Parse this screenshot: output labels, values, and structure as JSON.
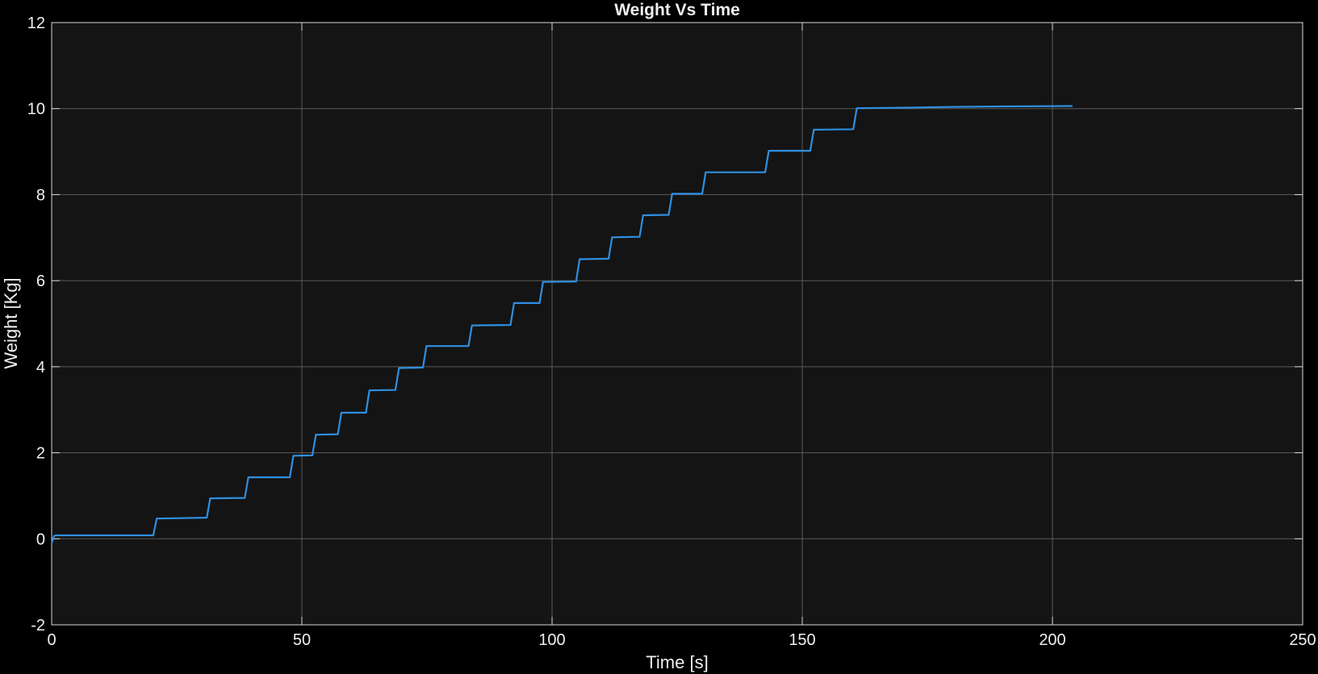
{
  "chart_data": {
    "type": "line",
    "title": "Weight Vs Time",
    "xlabel": "Time [s]",
    "ylabel": "Weight [Kg]",
    "xlim": [
      0,
      250
    ],
    "ylim": [
      -2,
      12
    ],
    "xticks": [
      0,
      50,
      100,
      150,
      200,
      250
    ],
    "yticks": [
      -2,
      0,
      2,
      4,
      6,
      8,
      10,
      12
    ],
    "grid": true,
    "colors": {
      "background": "#000000",
      "plot_area": "#141414",
      "grid": "#5a5a5a",
      "axis": "#d9d9d9",
      "series": "#2f8fe0"
    },
    "series": [
      {
        "x": [
          0,
          0.5,
          1,
          20.3,
          21,
          31,
          31.7,
          38.6,
          39.3,
          47.6,
          48.3,
          52.1,
          52.8,
          57.2,
          57.9,
          62.8,
          63.5,
          68.7,
          69.4,
          74.2,
          74.9,
          83.3,
          84,
          91.7,
          92.4,
          97.5,
          98.2,
          104.8,
          105.5,
          111.3,
          112,
          117.5,
          118.2,
          123.3,
          124,
          130,
          130.7,
          142.6,
          143.3,
          151.6,
          152.3,
          160.2,
          160.9,
          170,
          180,
          190,
          204
        ],
        "y": [
          -0.1,
          0.07,
          0.08,
          0.08,
          0.47,
          0.49,
          0.94,
          0.95,
          1.43,
          1.43,
          1.93,
          1.94,
          2.42,
          2.43,
          2.93,
          2.93,
          3.45,
          3.46,
          3.97,
          3.98,
          4.48,
          4.48,
          4.96,
          4.97,
          5.48,
          5.48,
          5.97,
          5.98,
          6.5,
          6.51,
          7.01,
          7.02,
          7.52,
          7.53,
          8.02,
          8.02,
          8.52,
          8.52,
          9.02,
          9.02,
          9.51,
          9.52,
          10.01,
          10.02,
          10.04,
          10.05,
          10.06
        ]
      }
    ]
  }
}
